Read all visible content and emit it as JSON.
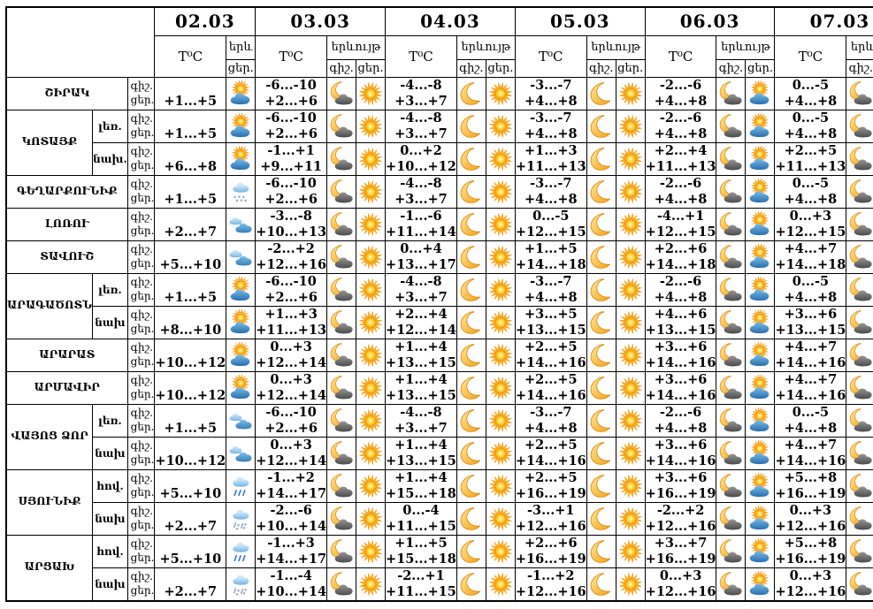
{
  "header": {
    "dates": [
      "02.03",
      "03.03",
      "04.03",
      "05.03",
      "06.03",
      "07.03"
    ],
    "temp_label": "T⁰C",
    "phen_label": "երևույթ",
    "phen_short": "երև",
    "night_label": "գիշ.",
    "day_label": "ցեր."
  },
  "regions": [
    {
      "name": "ՇԻՐԱԿ",
      "rows": [
        {
          "sub": null,
          "cells": [
            {
              "d": "+1...+5",
              "di": "sun-cloud"
            },
            {
              "n": "-6...-10",
              "d": "+2...+6",
              "ni": "moon-cloud",
              "di": "sun"
            },
            {
              "n": "-4...-8",
              "d": "+3...+7",
              "ni": "moon",
              "di": "sun"
            },
            {
              "n": "-3...-7",
              "d": "+4...+8",
              "ni": "moon",
              "di": "sun"
            },
            {
              "n": "-2...-6",
              "d": "+4...+8",
              "ni": "moon-cloud",
              "di": "sun-cloud"
            },
            {
              "n": "0...-5",
              "d": "+4...+8",
              "ni": "moon-cloud",
              "di": "sun-cloud"
            }
          ]
        }
      ]
    },
    {
      "name": "ԿՈՏԱՅՔ",
      "rows": [
        {
          "sub": "լեռ.",
          "cells": [
            {
              "d": "+1...+5",
              "di": "sun-cloud"
            },
            {
              "n": "-6...-10",
              "d": "+2...+6",
              "ni": "moon-cloud",
              "di": "sun"
            },
            {
              "n": "-4...-8",
              "d": "+3...+7",
              "ni": "moon",
              "di": "sun"
            },
            {
              "n": "-3...-7",
              "d": "+4...+8",
              "ni": "moon",
              "di": "sun"
            },
            {
              "n": "-2...-6",
              "d": "+4...+8",
              "ni": "moon-cloud",
              "di": "sun-cloud"
            },
            {
              "n": "0...-5",
              "d": "+4...+8",
              "ni": "moon-cloud",
              "di": "sun-cloud"
            }
          ]
        },
        {
          "sub": "նախ.",
          "cells": [
            {
              "d": "+6...+8",
              "di": "sun-cloud"
            },
            {
              "n": "-1...+1",
              "d": "+9...+11",
              "ni": "moon-cloud",
              "di": "sun"
            },
            {
              "n": "0...+2",
              "d": "+10...+12",
              "ni": "moon",
              "di": "sun"
            },
            {
              "n": "+1...+3",
              "d": "+11...+13",
              "ni": "moon",
              "di": "sun"
            },
            {
              "n": "+2...+4",
              "d": "+11...+13",
              "ni": "moon-cloud",
              "di": "sun-cloud"
            },
            {
              "n": "+2...+5",
              "d": "+11...+13",
              "ni": "moon-cloud",
              "di": "sun-cloud"
            }
          ]
        }
      ]
    },
    {
      "name": "ԳԵՂԱՐՔՈՒՆԻՔ",
      "rows": [
        {
          "sub": null,
          "cells": [
            {
              "d": "+1...+5",
              "di": "cloud-snow"
            },
            {
              "n": "-6...-10",
              "d": "+2...+6",
              "ni": "moon-cloud",
              "di": "sun"
            },
            {
              "n": "-4...-8",
              "d": "+3...+7",
              "ni": "moon",
              "di": "sun"
            },
            {
              "n": "-3...-7",
              "d": "+4...+8",
              "ni": "moon",
              "di": "sun"
            },
            {
              "n": "-2...-6",
              "d": "+4...+8",
              "ni": "moon-cloud",
              "di": "sun-cloud"
            },
            {
              "n": "0...-5",
              "d": "+4...+8",
              "ni": "moon-cloud",
              "di": "sun-cloud"
            }
          ]
        }
      ]
    },
    {
      "name": "ԼՈՌՈՒ",
      "rows": [
        {
          "sub": null,
          "cells": [
            {
              "d": "+2...+7",
              "di": "clouds"
            },
            {
              "n": "-3...-8",
              "d": "+10...+13",
              "ni": "moon-cloud",
              "di": "sun"
            },
            {
              "n": "-1...-6",
              "d": "+11...+14",
              "ni": "moon",
              "di": "sun"
            },
            {
              "n": "0...-5",
              "d": "+12...+15",
              "ni": "moon",
              "di": "sun"
            },
            {
              "n": "-4...+1",
              "d": "+12...+15",
              "ni": "moon-cloud",
              "di": "sun-cloud"
            },
            {
              "n": "0...+3",
              "d": "+12...+15",
              "ni": "moon-cloud",
              "di": "sun-cloud"
            }
          ]
        }
      ]
    },
    {
      "name": "ՏԱՎՈՒՇ",
      "rows": [
        {
          "sub": null,
          "cells": [
            {
              "d": "+5...+10",
              "di": "clouds"
            },
            {
              "n": "-2...+2",
              "d": "+12...+16",
              "ni": "moon-cloud",
              "di": "sun"
            },
            {
              "n": "0...+4",
              "d": "+13...+17",
              "ni": "moon",
              "di": "sun"
            },
            {
              "n": "+1...+5",
              "d": "+14...+18",
              "ni": "moon",
              "di": "sun"
            },
            {
              "n": "+2...+6",
              "d": "+14...+18",
              "ni": "moon-cloud",
              "di": "sun-cloud"
            },
            {
              "n": "+4...+7",
              "d": "+14...+18",
              "ni": "moon-cloud",
              "di": "sun-cloud"
            }
          ]
        }
      ]
    },
    {
      "name": "ԱՐԱԳԱԾՈՏՆ",
      "rows": [
        {
          "sub": "լեռ.",
          "cells": [
            {
              "d": "+1...+5",
              "di": "sun-cloud"
            },
            {
              "n": "-6...-10",
              "d": "+2...+6",
              "ni": "moon-cloud",
              "di": "sun"
            },
            {
              "n": "-4...-8",
              "d": "+3...+7",
              "ni": "moon",
              "di": "sun"
            },
            {
              "n": "-3...-7",
              "d": "+4...+8",
              "ni": "moon",
              "di": "sun"
            },
            {
              "n": "-2...-6",
              "d": "+4...+8",
              "ni": "moon-cloud",
              "di": "sun-cloud"
            },
            {
              "n": "0...-5",
              "d": "+4...+8",
              "ni": "moon-cloud",
              "di": "sun-cloud"
            }
          ]
        },
        {
          "sub": "նախ",
          "cells": [
            {
              "d": "+8...+10",
              "di": "sun-cloud"
            },
            {
              "n": "+1...+3",
              "d": "+11...+13",
              "ni": "moon-cloud",
              "di": "sun"
            },
            {
              "n": "+2...+4",
              "d": "+12...+14",
              "ni": "moon",
              "di": "sun"
            },
            {
              "n": "+3...+5",
              "d": "+13...+15",
              "ni": "moon",
              "di": "sun"
            },
            {
              "n": "+4...+6",
              "d": "+13...+15",
              "ni": "moon-cloud",
              "di": "sun-cloud"
            },
            {
              "n": "+3...+6",
              "d": "+13...+15",
              "ni": "moon-cloud",
              "di": "sun-cloud"
            }
          ]
        }
      ]
    },
    {
      "name": "ԱՐԱՐԱՏ",
      "rows": [
        {
          "sub": null,
          "cells": [
            {
              "d": "+10...+12",
              "di": "sun-cloud"
            },
            {
              "n": "0...+3",
              "d": "+12...+14",
              "ni": "moon-cloud",
              "di": "sun"
            },
            {
              "n": "+1...+4",
              "d": "+13...+15",
              "ni": "moon",
              "di": "sun"
            },
            {
              "n": "+2...+5",
              "d": "+14...+16",
              "ni": "moon",
              "di": "sun"
            },
            {
              "n": "+3...+6",
              "d": "+14...+16",
              "ni": "moon-cloud",
              "di": "sun-cloud"
            },
            {
              "n": "+4...+7",
              "d": "+14...+16",
              "ni": "moon-cloud",
              "di": "sun-cloud"
            }
          ]
        }
      ]
    },
    {
      "name": "ԱՐՄԱՎԻՐ",
      "rows": [
        {
          "sub": null,
          "cells": [
            {
              "d": "+10...+12",
              "di": "sun-cloud"
            },
            {
              "n": "0...+3",
              "d": "+12...+14",
              "ni": "moon-cloud",
              "di": "sun"
            },
            {
              "n": "+1...+4",
              "d": "+13...+15",
              "ni": "moon",
              "di": "sun"
            },
            {
              "n": "+2...+5",
              "d": "+14...+16",
              "ni": "moon",
              "di": "sun"
            },
            {
              "n": "+3...+6",
              "d": "+14...+16",
              "ni": "moon-cloud",
              "di": "sun-cloud"
            },
            {
              "n": "+4...+7",
              "d": "+14...+16",
              "ni": "moon-cloud",
              "di": "sun-cloud"
            }
          ]
        }
      ]
    },
    {
      "name": "ՎԱՅՈՑ ՁՈՐ",
      "rows": [
        {
          "sub": "լեռ.",
          "cells": [
            {
              "d": "+1...+5",
              "di": "clouds"
            },
            {
              "n": "-6...-10",
              "d": "+2...+6",
              "ni": "moon-cloud",
              "di": "sun"
            },
            {
              "n": "-4...-8",
              "d": "+3...+7",
              "ni": "moon",
              "di": "sun"
            },
            {
              "n": "-3...-7",
              "d": "+4...+8",
              "ni": "moon",
              "di": "sun"
            },
            {
              "n": "-2...-6",
              "d": "+4...+8",
              "ni": "moon-cloud",
              "di": "sun-cloud"
            },
            {
              "n": "0...-5",
              "d": "+4...+8",
              "ni": "moon-cloud",
              "di": "sun-cloud"
            }
          ]
        },
        {
          "sub": "նախ",
          "cells": [
            {
              "d": "+10...+12",
              "di": "clouds"
            },
            {
              "n": "0...+3",
              "d": "+12...+14",
              "ni": "moon-cloud",
              "di": "sun"
            },
            {
              "n": "+1...+4",
              "d": "+13...+15",
              "ni": "moon",
              "di": "sun"
            },
            {
              "n": "+2...+5",
              "d": "+14...+16",
              "ni": "moon",
              "di": "sun"
            },
            {
              "n": "+3...+6",
              "d": "+14...+16",
              "ni": "moon-cloud",
              "di": "sun-cloud"
            },
            {
              "n": "+4...+7",
              "d": "+14...+16",
              "ni": "moon-cloud",
              "di": "sun-cloud"
            }
          ]
        }
      ]
    },
    {
      "name": "ՍՅՈՒՆԻՔ",
      "rows": [
        {
          "sub": "հով.",
          "cells": [
            {
              "d": "+5...+10",
              "di": "cloud-rain"
            },
            {
              "n": "-1...+2",
              "d": "+14...+17",
              "ni": "moon-cloud",
              "di": "sun"
            },
            {
              "n": "+1...+4",
              "d": "+15...+18",
              "ni": "moon",
              "di": "sun"
            },
            {
              "n": "+2...+5",
              "d": "+16...+19",
              "ni": "moon",
              "di": "sun"
            },
            {
              "n": "+3...+6",
              "d": "+16...+19",
              "ni": "moon-cloud",
              "di": "sun-cloud"
            },
            {
              "n": "+5...+8",
              "d": "+16...+19",
              "ni": "moon-cloud",
              "di": "sun-cloud"
            }
          ]
        },
        {
          "sub": "նախ",
          "cells": [
            {
              "d": "+2...+7",
              "di": "cloud-sleet"
            },
            {
              "n": "-2...-6",
              "d": "+10...+14",
              "ni": "moon-cloud",
              "di": "sun"
            },
            {
              "n": "0...-4",
              "d": "+11...+15",
              "ni": "moon",
              "di": "sun"
            },
            {
              "n": "-3...+1",
              "d": "+12...+16",
              "ni": "moon",
              "di": "sun"
            },
            {
              "n": "-2...+2",
              "d": "+12...+16",
              "ni": "moon-cloud",
              "di": "sun-cloud"
            },
            {
              "n": "0...+3",
              "d": "+12...+16",
              "ni": "moon-cloud",
              "di": "sun-cloud"
            }
          ]
        }
      ]
    },
    {
      "name": "ԱՐՑԱԽ",
      "rows": [
        {
          "sub": "հով.",
          "cells": [
            {
              "d": "+5...+10",
              "di": "cloud-rain"
            },
            {
              "n": "-1...+3",
              "d": "+14...+17",
              "ni": "moon-cloud",
              "di": "sun"
            },
            {
              "n": "+1...+5",
              "d": "+15...+18",
              "ni": "moon",
              "di": "sun"
            },
            {
              "n": "+2...+6",
              "d": "+16...+19",
              "ni": "moon",
              "di": "sun"
            },
            {
              "n": "+3...+7",
              "d": "+16...+19",
              "ni": "moon-cloud",
              "di": "sun-cloud"
            },
            {
              "n": "+5...+8",
              "d": "+16...+19",
              "ni": "moon-cloud",
              "di": "sun-cloud"
            }
          ]
        },
        {
          "sub": "նախ",
          "cells": [
            {
              "d": "+2...+7",
              "di": "cloud-sleet"
            },
            {
              "n": "-1...-4",
              "d": "+10...+14",
              "ni": "moon-cloud",
              "di": "sun"
            },
            {
              "n": "-2...+1",
              "d": "+11...+15",
              "ni": "moon",
              "di": "sun"
            },
            {
              "n": "-1...+2",
              "d": "+12...+16",
              "ni": "moon",
              "di": "sun"
            },
            {
              "n": "0...+3",
              "d": "+12...+16",
              "ni": "moon-cloud",
              "di": "sun-cloud"
            },
            {
              "n": "0...+3",
              "d": "+12...+16",
              "ni": "moon-cloud",
              "di": "sun-cloud"
            }
          ]
        }
      ]
    }
  ],
  "icon_colors": {
    "sun_core": "#ffd940",
    "sun_rays": "#ffb414",
    "sun_outline": "#ea8500",
    "moon_fill": "#f6b92c",
    "moon_outline": "#dd8500",
    "cloud_blue": "#5aa1d8",
    "cloud_dark": "#6e6e6e",
    "rain_stroke": "#3b76c4",
    "snow_dots": "#a9b7c6"
  }
}
